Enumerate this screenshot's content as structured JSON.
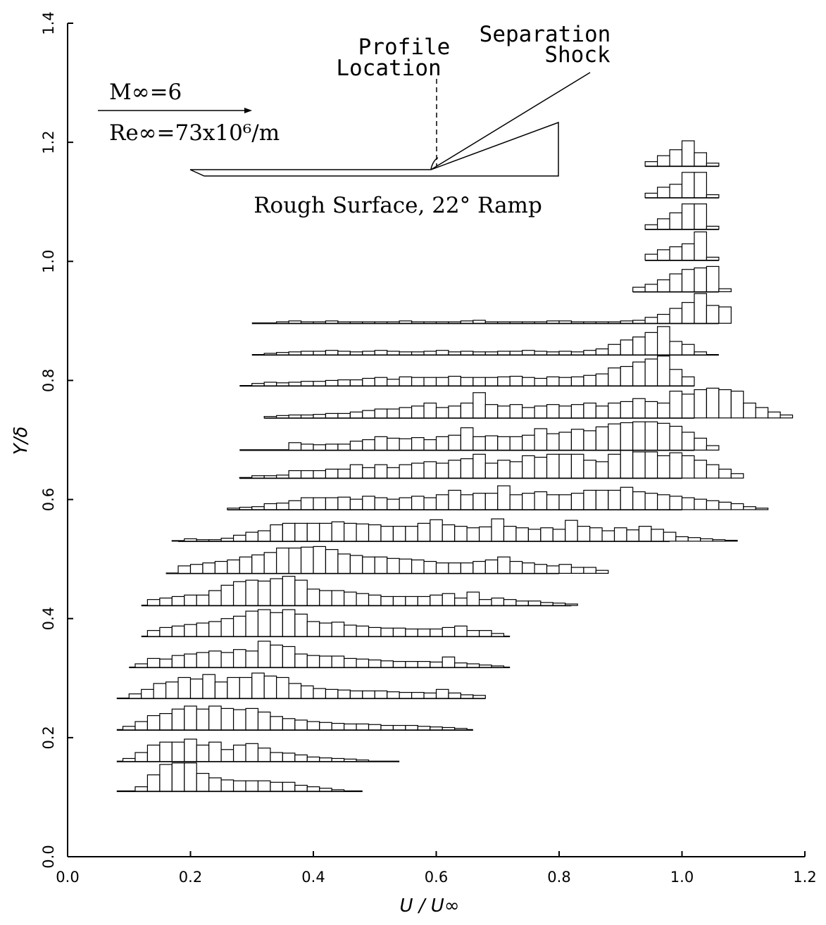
{
  "chart_data": {
    "type": "histogram-profiles",
    "xlabel": "U / U∞",
    "ylabel": "Y/δ",
    "xlim": [
      0.0,
      1.2
    ],
    "ylim": [
      0.0,
      1.4
    ],
    "x_ticks": [
      "0.0",
      "0.2",
      "0.4",
      "0.6",
      "0.8",
      "1.0",
      "1.2"
    ],
    "y_ticks": [
      "0.0",
      "0.2",
      "0.4",
      "0.6",
      "0.8",
      "1.0",
      "1.2",
      "1.4"
    ],
    "bin_width": 0.02,
    "bar_height_scale": 0.05,
    "annotations": {
      "mach": "M∞=6",
      "reynolds": "Re∞=73x10⁶/m",
      "profile_location": [
        "Profile",
        "Location"
      ],
      "separation_shock": [
        "Separation",
        "Shock"
      ],
      "surface_label": "Rough Surface, 22° Ramp"
    },
    "profiles": [
      {
        "y": 0.11,
        "x_start": 0.08,
        "x_end": 0.48,
        "bins_start": 0.11,
        "heights": [
          0.15,
          0.55,
          0.9,
          0.95,
          0.95,
          0.6,
          0.45,
          0.38,
          0.35,
          0.35,
          0.35,
          0.3,
          0.3,
          0.2,
          0.15,
          0.1,
          0.05
        ]
      },
      {
        "y": 0.16,
        "x_start": 0.08,
        "x_end": 0.54,
        "bins_start": 0.09,
        "heights": [
          0.1,
          0.3,
          0.55,
          0.65,
          0.65,
          0.75,
          0.55,
          0.65,
          0.4,
          0.55,
          0.6,
          0.45,
          0.3,
          0.28,
          0.22,
          0.15,
          0.12,
          0.1,
          0.08,
          0.05
        ]
      },
      {
        "y": 0.213,
        "x_start": 0.08,
        "x_end": 0.66,
        "bins_start": 0.09,
        "heights": [
          0.12,
          0.28,
          0.48,
          0.55,
          0.7,
          0.8,
          0.7,
          0.8,
          0.72,
          0.68,
          0.72,
          0.6,
          0.45,
          0.38,
          0.33,
          0.28,
          0.25,
          0.22,
          0.2,
          0.2,
          0.18,
          0.15,
          0.15,
          0.15,
          0.12,
          0.1,
          0.08,
          0.05
        ]
      },
      {
        "y": 0.266,
        "x_start": 0.08,
        "x_end": 0.68,
        "bins_start": 0.1,
        "heights": [
          0.15,
          0.3,
          0.5,
          0.55,
          0.7,
          0.65,
          0.8,
          0.55,
          0.7,
          0.7,
          0.85,
          0.75,
          0.7,
          0.5,
          0.42,
          0.33,
          0.3,
          0.28,
          0.25,
          0.25,
          0.25,
          0.22,
          0.2,
          0.2,
          0.18,
          0.3,
          0.18,
          0.12,
          0.1
        ]
      },
      {
        "y": 0.318,
        "x_start": 0.1,
        "x_end": 0.72,
        "bins_start": 0.11,
        "heights": [
          0.12,
          0.3,
          0.28,
          0.4,
          0.45,
          0.5,
          0.55,
          0.5,
          0.6,
          0.55,
          0.88,
          0.75,
          0.7,
          0.45,
          0.4,
          0.38,
          0.38,
          0.3,
          0.28,
          0.25,
          0.22,
          0.2,
          0.2,
          0.2,
          0.18,
          0.35,
          0.15,
          0.12,
          0.08,
          0.05
        ]
      },
      {
        "y": 0.37,
        "x_start": 0.12,
        "x_end": 0.72,
        "bins_start": 0.13,
        "heights": [
          0.2,
          0.3,
          0.35,
          0.4,
          0.45,
          0.5,
          0.6,
          0.68,
          0.85,
          0.9,
          0.8,
          0.9,
          0.75,
          0.5,
          0.45,
          0.48,
          0.38,
          0.35,
          0.3,
          0.28,
          0.28,
          0.25,
          0.25,
          0.25,
          0.3,
          0.35,
          0.2,
          0.2,
          0.1
        ]
      },
      {
        "y": 0.422,
        "x_start": 0.12,
        "x_end": 0.82,
        "bins_start": 0.13,
        "heights": [
          0.2,
          0.25,
          0.3,
          0.35,
          0.35,
          0.5,
          0.68,
          0.8,
          0.85,
          0.82,
          0.9,
          0.98,
          0.85,
          0.55,
          0.5,
          0.5,
          0.45,
          0.4,
          0.35,
          0.3,
          0.3,
          0.3,
          0.3,
          0.35,
          0.4,
          0.25,
          0.45,
          0.2,
          0.25,
          0.2,
          0.15,
          0.15,
          0.1,
          0.08,
          0.05
        ]
      },
      {
        "y": 0.476,
        "x_start": 0.16,
        "x_end": 0.8,
        "bins_start": 0.18,
        "heights": [
          0.25,
          0.3,
          0.35,
          0.4,
          0.45,
          0.55,
          0.62,
          0.7,
          0.85,
          0.85,
          0.88,
          0.9,
          0.8,
          0.65,
          0.6,
          0.55,
          0.55,
          0.5,
          0.48,
          0.45,
          0.4,
          0.35,
          0.35,
          0.35,
          0.4,
          0.45,
          0.55,
          0.4,
          0.35,
          0.3,
          0.25,
          0.3,
          0.2,
          0.2,
          0.1
        ]
      },
      {
        "y": 0.53,
        "x_start": 0.18,
        "x_end": 0.98,
        "bins_start": 0.17,
        "heights": [
          0.02,
          0.08,
          0.05,
          0.05,
          0.1,
          0.2,
          0.3,
          0.35,
          0.55,
          0.6,
          0.6,
          0.6,
          0.6,
          0.65,
          0.6,
          0.58,
          0.55,
          0.5,
          0.5,
          0.5,
          0.6,
          0.72,
          0.55,
          0.5,
          0.45,
          0.48,
          0.75,
          0.5,
          0.45,
          0.4,
          0.45,
          0.4,
          0.7,
          0.5,
          0.45,
          0.35,
          0.45,
          0.38,
          0.5,
          0.4,
          0.3,
          0.15,
          0.12,
          0.08,
          0.05,
          0.03
        ]
      },
      {
        "y": 0.583,
        "x_start": 0.26,
        "x_end": 1.0,
        "bins_start": 0.26,
        "heights": [
          0.05,
          0.08,
          0.1,
          0.2,
          0.22,
          0.3,
          0.4,
          0.4,
          0.4,
          0.42,
          0.35,
          0.45,
          0.4,
          0.35,
          0.4,
          0.45,
          0.4,
          0.5,
          0.65,
          0.5,
          0.55,
          0.55,
          0.8,
          0.5,
          0.55,
          0.6,
          0.5,
          0.5,
          0.55,
          0.65,
          0.65,
          0.65,
          0.75,
          0.6,
          0.55,
          0.5,
          0.45,
          0.4,
          0.35,
          0.3,
          0.25,
          0.2,
          0.1,
          0.05
        ]
      },
      {
        "y": 0.636,
        "x_start": 0.28,
        "x_end": 1.0,
        "bins_start": 0.28,
        "heights": [
          0.02,
          0.08,
          0.08,
          0.1,
          0.25,
          0.25,
          0.25,
          0.3,
          0.3,
          0.45,
          0.35,
          0.45,
          0.35,
          0.45,
          0.5,
          0.55,
          0.5,
          0.6,
          0.65,
          0.8,
          0.5,
          0.6,
          0.55,
          0.75,
          0.7,
          0.8,
          0.8,
          0.8,
          0.6,
          0.55,
          0.8,
          0.95,
          0.88,
          0.88,
          0.75,
          0.85,
          0.75,
          0.6,
          0.45,
          0.3,
          0.15
        ]
      },
      {
        "y": 0.683,
        "x_start": 0.28,
        "x_end": 1.02,
        "bins_start": 0.36,
        "heights": [
          0.25,
          0.2,
          0.18,
          0.2,
          0.2,
          0.3,
          0.35,
          0.45,
          0.4,
          0.38,
          0.42,
          0.35,
          0.45,
          0.5,
          0.75,
          0.45,
          0.48,
          0.45,
          0.45,
          0.5,
          0.72,
          0.55,
          0.6,
          0.7,
          0.65,
          0.78,
          0.88,
          0.92,
          0.95,
          0.95,
          0.9,
          0.8,
          0.6,
          0.4,
          0.15
        ]
      },
      {
        "y": 0.737,
        "x_start": 0.32,
        "x_end": 1.02,
        "bins_start": 0.32,
        "heights": [
          0.05,
          0.08,
          0.1,
          0.1,
          0.12,
          0.15,
          0.15,
          0.2,
          0.25,
          0.3,
          0.3,
          0.35,
          0.4,
          0.5,
          0.35,
          0.4,
          0.5,
          0.85,
          0.45,
          0.4,
          0.45,
          0.35,
          0.4,
          0.45,
          0.4,
          0.45,
          0.5,
          0.4,
          0.5,
          0.55,
          0.65,
          0.55,
          0.5,
          0.9,
          0.8,
          0.95,
          1.0,
          0.95,
          0.9,
          0.5,
          0.35,
          0.2,
          0.1
        ]
      },
      {
        "y": 0.791,
        "x_start": 0.28,
        "x_end": 1.02,
        "bins_start": 0.3,
        "heights": [
          0.08,
          0.12,
          0.1,
          0.12,
          0.15,
          0.15,
          0.18,
          0.2,
          0.2,
          0.25,
          0.28,
          0.22,
          0.3,
          0.28,
          0.28,
          0.28,
          0.32,
          0.28,
          0.28,
          0.28,
          0.3,
          0.32,
          0.28,
          0.25,
          0.3,
          0.28,
          0.3,
          0.35,
          0.4,
          0.6,
          0.65,
          0.8,
          0.9,
          1.0,
          0.55,
          0.3
        ]
      },
      {
        "y": 0.843,
        "x_start": 0.3,
        "x_end": 1.06,
        "bins_start": 0.32,
        "heights": [
          0.05,
          0.08,
          0.1,
          0.12,
          0.12,
          0.15,
          0.12,
          0.1,
          0.12,
          0.15,
          0.12,
          0.1,
          0.1,
          0.12,
          0.15,
          0.1,
          0.12,
          0.1,
          0.1,
          0.12,
          0.12,
          0.15,
          0.12,
          0.1,
          0.12,
          0.1,
          0.15,
          0.2,
          0.35,
          0.5,
          0.6,
          0.75,
          0.95,
          0.45,
          0.35,
          0.1
        ]
      },
      {
        "y": 0.896,
        "x_start": 0.3,
        "x_end": 1.06,
        "bins_start": 0.34,
        "heights": [
          0.05,
          0.08,
          0.05,
          0.05,
          0.08,
          0.05,
          0.05,
          0.05,
          0.05,
          0.05,
          0.08,
          0.05,
          0.05,
          0.05,
          0.05,
          0.08,
          0.1,
          0.05,
          0.05,
          0.05,
          0.05,
          0.05,
          0.08,
          0.08,
          0.05,
          0.05,
          0.05,
          0.05,
          0.08,
          0.1,
          0.2,
          0.3,
          0.5,
          0.7,
          1.0,
          0.6,
          0.55
        ]
      },
      {
        "y": 0.949,
        "x_start": 0.92,
        "x_end": 1.06,
        "bins_start": 0.92,
        "heights": [
          0.15,
          0.25,
          0.4,
          0.6,
          0.75,
          0.8,
          0.85,
          0.1
        ]
      },
      {
        "y": 1.002,
        "x_start": 0.94,
        "x_end": 1.06,
        "bins_start": 0.94,
        "heights": [
          0.2,
          0.35,
          0.45,
          0.55,
          0.95,
          0.1
        ]
      },
      {
        "y": 1.054,
        "x_start": 0.94,
        "x_end": 1.06,
        "bins_start": 0.94,
        "heights": [
          0.15,
          0.35,
          0.55,
          0.85,
          0.85,
          0.1
        ]
      },
      {
        "y": 1.107,
        "x_start": 0.94,
        "x_end": 1.06,
        "bins_start": 0.94,
        "heights": [
          0.15,
          0.35,
          0.45,
          0.85,
          0.85,
          0.1
        ]
      },
      {
        "y": 1.16,
        "x_start": 0.94,
        "x_end": 1.06,
        "bins_start": 0.94,
        "heights": [
          0.15,
          0.35,
          0.55,
          0.85,
          0.45,
          0.1
        ]
      }
    ]
  }
}
